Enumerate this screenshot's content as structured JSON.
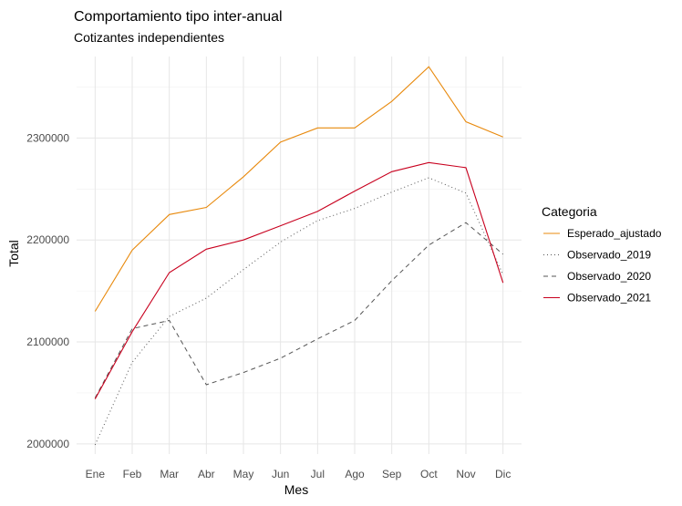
{
  "chart_data": {
    "type": "line",
    "title": "Comportamiento tipo inter-anual",
    "subtitle": "Cotizantes independientes",
    "xlabel": "Mes",
    "ylabel": "Total",
    "categories": [
      "Ene",
      "Feb",
      "Mar",
      "Abr",
      "May",
      "Jun",
      "Jul",
      "Ago",
      "Sep",
      "Oct",
      "Nov",
      "Dic"
    ],
    "ylim": [
      1990000,
      2380000
    ],
    "yticks": [
      2000000,
      2100000,
      2200000,
      2300000
    ],
    "ytick_labels": [
      "2000000",
      "2100000",
      "2200000",
      "2300000"
    ],
    "grid": true,
    "legend": {
      "title": "Categoria",
      "position": "right"
    },
    "series": [
      {
        "name": "Esperado_ajustado",
        "color": "#e8890c",
        "dash": "solid",
        "values": [
          2130000,
          2190000,
          2225000,
          2232000,
          2262000,
          2296000,
          2310000,
          2310000,
          2336000,
          2370000,
          2316000,
          2301000
        ]
      },
      {
        "name": "Observado_2019",
        "color": "#555555",
        "dash": "dotted",
        "values": [
          1999000,
          2080000,
          2125000,
          2143000,
          2171000,
          2198000,
          2219000,
          2231000,
          2247000,
          2261000,
          2246000,
          2166000
        ]
      },
      {
        "name": "Observado_2020",
        "color": "#555555",
        "dash": "dashed",
        "values": [
          2045000,
          2113000,
          2121000,
          2058000,
          2070000,
          2084000,
          2103000,
          2121000,
          2160000,
          2195000,
          2217000,
          2186000
        ]
      },
      {
        "name": "Observado_2021",
        "color": "#c8001e",
        "dash": "solid",
        "values": [
          2044000,
          2110000,
          2168000,
          2191000,
          2200000,
          2214000,
          2228000,
          2248000,
          2267000,
          2276000,
          2271000,
          2158000
        ]
      }
    ]
  }
}
